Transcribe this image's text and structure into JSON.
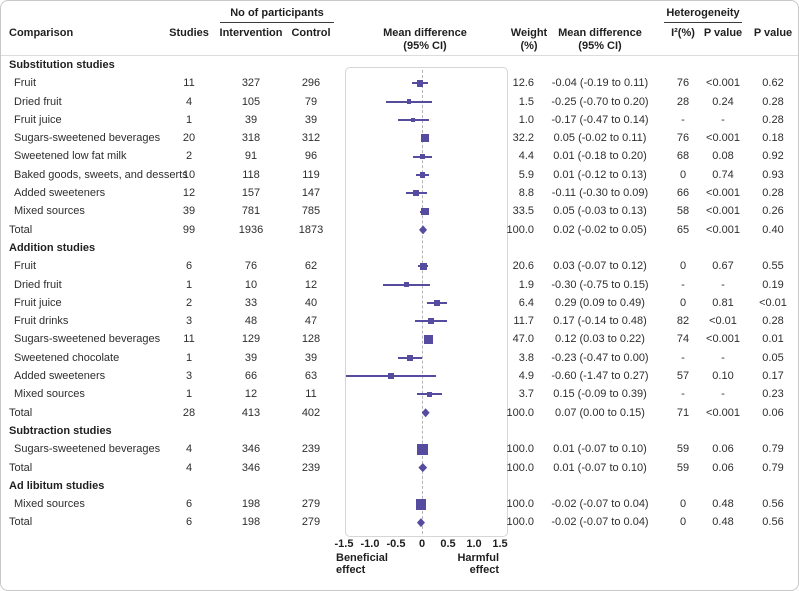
{
  "colors": {
    "marker": "#554CA0",
    "text": "#2E2E2E",
    "border": "#C8C8C8"
  },
  "header": {
    "comparison": "Comparison",
    "studies": "Studies",
    "participants_group": "No of participants",
    "intervention": "Intervention",
    "control": "Control",
    "plot_title_line1": "Mean difference",
    "plot_title_line2": "(95% CI)",
    "weight_line1": "Weight",
    "weight_line2": "(%)",
    "md_line1": "Mean difference",
    "md_line2": "(95% CI)",
    "heterogeneity_group": "Heterogeneity",
    "i2": "I²(%)",
    "p_het": "P value",
    "p_val": "P value"
  },
  "footer": {
    "beneficial_line1": "Beneficial",
    "beneficial_line2": "effect",
    "harmful_line1": "Harmful",
    "harmful_line2": "effect"
  },
  "chart_data": {
    "type": "forest",
    "xlim": [
      -1.5,
      1.5
    ],
    "axis": {
      "ticks": [
        {
          "label": "-1.5",
          "value": -1.5
        },
        {
          "label": "-1.0",
          "value": -1.0
        },
        {
          "label": "-0.5",
          "value": -0.5
        },
        {
          "label": "0",
          "value": 0
        },
        {
          "label": "0.5",
          "value": 0.5
        },
        {
          "label": "1.0",
          "value": 1.0
        },
        {
          "label": "1.5",
          "value": 1.5
        }
      ]
    },
    "sections": [
      {
        "label": "Substitution studies",
        "rows": [
          {
            "kind": "study",
            "label": "Fruit",
            "studies": "11",
            "intervention": "327",
            "control": "296",
            "weight": "12.6",
            "md": "-0.04 (-0.19 to 0.11)",
            "est": -0.04,
            "lo": -0.19,
            "hi": 0.11,
            "i2": "76",
            "p_het": "<0.001",
            "p": "0.62"
          },
          {
            "kind": "study",
            "label": "Dried fruit",
            "studies": "4",
            "intervention": "105",
            "control": "79",
            "weight": "1.5",
            "md": "-0.25 (-0.70 to 0.20)",
            "est": -0.25,
            "lo": -0.7,
            "hi": 0.2,
            "i2": "28",
            "p_het": "0.24",
            "p": "0.28"
          },
          {
            "kind": "study",
            "label": "Fruit juice",
            "studies": "1",
            "intervention": "39",
            "control": "39",
            "weight": "1.0",
            "md": "-0.17 (-0.47 to 0.14)",
            "est": -0.17,
            "lo": -0.47,
            "hi": 0.14,
            "i2": "-",
            "p_het": "-",
            "p": "0.28"
          },
          {
            "kind": "study",
            "label": "Sugars-sweetened beverages",
            "studies": "20",
            "intervention": "318",
            "control": "312",
            "weight": "32.2",
            "md": "0.05 (-0.02 to 0.11)",
            "est": 0.05,
            "lo": -0.02,
            "hi": 0.11,
            "i2": "76",
            "p_het": "<0.001",
            "p": "0.18"
          },
          {
            "kind": "study",
            "label": "Sweetened low fat milk",
            "studies": "2",
            "intervention": "91",
            "control": "96",
            "weight": "4.4",
            "md": "0.01 (-0.18 to 0.20)",
            "est": 0.01,
            "lo": -0.18,
            "hi": 0.2,
            "i2": "68",
            "p_het": "0.08",
            "p": "0.92"
          },
          {
            "kind": "study",
            "label": "Baked goods, sweets, and desserts",
            "studies": "10",
            "intervention": "118",
            "control": "119",
            "weight": "5.9",
            "md": "0.01 (-0.12 to 0.13)",
            "est": 0.01,
            "lo": -0.12,
            "hi": 0.13,
            "i2": "0",
            "p_het": "0.74",
            "p": "0.93"
          },
          {
            "kind": "study",
            "label": "Added sweeteners",
            "studies": "12",
            "intervention": "157",
            "control": "147",
            "weight": "8.8",
            "md": "-0.11 (-0.30 to 0.09)",
            "est": -0.11,
            "lo": -0.3,
            "hi": 0.09,
            "i2": "66",
            "p_het": "<0.001",
            "p": "0.28"
          },
          {
            "kind": "study",
            "label": "Mixed sources",
            "studies": "39",
            "intervention": "781",
            "control": "785",
            "weight": "33.5",
            "md": "0.05 (-0.03 to 0.13)",
            "est": 0.05,
            "lo": -0.03,
            "hi": 0.13,
            "i2": "58",
            "p_het": "<0.001",
            "p": "0.26"
          },
          {
            "kind": "total",
            "label": "Total",
            "studies": "99",
            "intervention": "1936",
            "control": "1873",
            "weight": "100.0",
            "md": "0.02 (-0.02 to 0.05)",
            "est": 0.02,
            "lo": -0.02,
            "hi": 0.05,
            "i2": "65",
            "p_het": "<0.001",
            "p": "0.40"
          }
        ]
      },
      {
        "label": "Addition studies",
        "rows": [
          {
            "kind": "study",
            "label": "Fruit",
            "studies": "6",
            "intervention": "76",
            "control": "62",
            "weight": "20.6",
            "md": "0.03 (-0.07 to 0.12)",
            "est": 0.03,
            "lo": -0.07,
            "hi": 0.12,
            "i2": "0",
            "p_het": "0.67",
            "p": "0.55"
          },
          {
            "kind": "study",
            "label": "Dried fruit",
            "studies": "1",
            "intervention": "10",
            "control": "12",
            "weight": "1.9",
            "md": "-0.30 (-0.75 to 0.15)",
            "est": -0.3,
            "lo": -0.75,
            "hi": 0.15,
            "i2": "-",
            "p_het": "-",
            "p": "0.19"
          },
          {
            "kind": "study",
            "label": "Fruit juice",
            "studies": "2",
            "intervention": "33",
            "control": "40",
            "weight": "6.4",
            "md": "0.29 (0.09 to 0.49)",
            "est": 0.29,
            "lo": 0.09,
            "hi": 0.49,
            "i2": "0",
            "p_het": "0.81",
            "p": "<0.01"
          },
          {
            "kind": "study",
            "label": "Fruit drinks",
            "studies": "3",
            "intervention": "48",
            "control": "47",
            "weight": "11.7",
            "md": "0.17 (-0.14 to 0.48)",
            "est": 0.17,
            "lo": -0.14,
            "hi": 0.48,
            "i2": "82",
            "p_het": "<0.01",
            "p": "0.28"
          },
          {
            "kind": "study",
            "label": "Sugars-sweetened beverages",
            "studies": "11",
            "intervention": "129",
            "control": "128",
            "weight": "47.0",
            "md": "0.12 (0.03 to 0.22)",
            "est": 0.12,
            "lo": 0.03,
            "hi": 0.22,
            "i2": "74",
            "p_het": "<0.001",
            "p": "0.01"
          },
          {
            "kind": "study",
            "label": "Sweetened chocolate",
            "studies": "1",
            "intervention": "39",
            "control": "39",
            "weight": "3.8",
            "md": "-0.23 (-0.47 to 0.00)",
            "est": -0.23,
            "lo": -0.47,
            "hi": 0.0,
            "i2": "-",
            "p_het": "-",
            "p": "0.05"
          },
          {
            "kind": "study",
            "label": "Added sweeteners",
            "studies": "3",
            "intervention": "66",
            "control": "63",
            "weight": "4.9",
            "md": "-0.60 (-1.47 to 0.27)",
            "est": -0.6,
            "lo": -1.47,
            "hi": 0.27,
            "i2": "57",
            "p_het": "0.10",
            "p": "0.17"
          },
          {
            "kind": "study",
            "label": "Mixed sources",
            "studies": "1",
            "intervention": "12",
            "control": "11",
            "weight": "3.7",
            "md": "0.15 (-0.09 to 0.39)",
            "est": 0.15,
            "lo": -0.09,
            "hi": 0.39,
            "i2": "-",
            "p_het": "-",
            "p": "0.23"
          },
          {
            "kind": "total",
            "label": "Total",
            "studies": "28",
            "intervention": "413",
            "control": "402",
            "weight": "100.0",
            "md": "0.07 (0.00 to 0.15)",
            "est": 0.07,
            "lo": 0.0,
            "hi": 0.15,
            "i2": "71",
            "p_het": "<0.001",
            "p": "0.06"
          }
        ]
      },
      {
        "label": "Subtraction studies",
        "rows": [
          {
            "kind": "study",
            "label": "Sugars-sweetened beverages",
            "studies": "4",
            "intervention": "346",
            "control": "239",
            "weight": "100.0",
            "md": "0.01 (-0.07 to 0.10)",
            "est": 0.01,
            "lo": -0.07,
            "hi": 0.1,
            "i2": "59",
            "p_het": "0.06",
            "p": "0.79"
          },
          {
            "kind": "total",
            "label": "Total",
            "studies": "4",
            "intervention": "346",
            "control": "239",
            "weight": "100.0",
            "md": "0.01 (-0.07 to 0.10)",
            "est": 0.01,
            "lo": -0.07,
            "hi": 0.1,
            "i2": "59",
            "p_het": "0.06",
            "p": "0.79"
          }
        ]
      },
      {
        "label": "Ad libitum studies",
        "rows": [
          {
            "kind": "study",
            "label": "Mixed sources",
            "studies": "6",
            "intervention": "198",
            "control": "279",
            "weight": "100.0",
            "md": "-0.02 (-0.07 to 0.04)",
            "est": -0.02,
            "lo": -0.07,
            "hi": 0.04,
            "i2": "0",
            "p_het": "0.48",
            "p": "0.56"
          },
          {
            "kind": "total",
            "label": "Total",
            "studies": "6",
            "intervention": "198",
            "control": "279",
            "weight": "100.0",
            "md": "-0.02 (-0.07 to 0.04)",
            "est": -0.02,
            "lo": -0.07,
            "hi": 0.04,
            "i2": "0",
            "p_het": "0.48",
            "p": "0.56"
          }
        ]
      }
    ]
  }
}
